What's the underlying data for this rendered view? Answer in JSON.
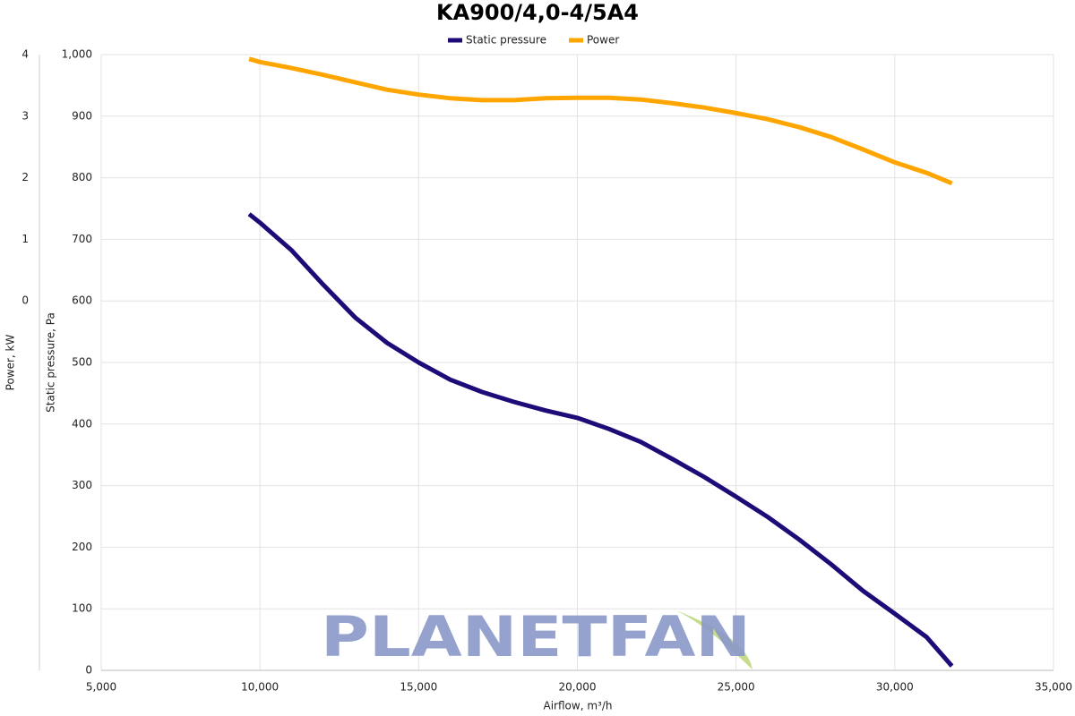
{
  "chart_data": {
    "type": "line",
    "title": "KA900/4,0-4/5A4",
    "x_label": "Airflow, m³/h",
    "y_label": "Static pressure, Pa",
    "y2_label": "Power, kW",
    "watermark": "PLANETFAN",
    "x": [
      9660,
      10000,
      11000,
      12000,
      13000,
      14000,
      15000,
      16000,
      17000,
      18000,
      19000,
      20000,
      21000,
      22000,
      23000,
      24000,
      25000,
      26000,
      27000,
      28000,
      29000,
      30000,
      31000,
      31800
    ],
    "series": [
      {
        "name": "Static pressure",
        "color": "#1f0b78",
        "values": [
          741,
          727,
          682,
          626,
          573,
          532,
          500,
          472,
          452,
          436,
          422,
          410,
          392,
          371,
          343,
          314,
          282,
          249,
          212,
          172,
          129,
          92,
          54,
          7
        ]
      },
      {
        "name": "Power",
        "color": "#ffa500",
        "axis": "y2",
        "values": [
          3.93,
          3.88,
          3.78,
          3.67,
          3.55,
          3.43,
          3.35,
          3.29,
          3.26,
          3.26,
          3.29,
          3.3,
          3.3,
          3.27,
          3.21,
          3.14,
          3.05,
          2.95,
          2.82,
          2.66,
          2.46,
          2.25,
          2.08,
          1.91
        ]
      }
    ],
    "xlim": [
      5000,
      35000
    ],
    "xticks": [
      {
        "value": 5000,
        "label": "5,000"
      },
      {
        "value": 10000,
        "label": "10,000"
      },
      {
        "value": 15000,
        "label": "15,000"
      },
      {
        "value": 20000,
        "label": "20,000"
      },
      {
        "value": 25000,
        "label": "25,000"
      },
      {
        "value": 30000,
        "label": "30,000"
      },
      {
        "value": 35000,
        "label": "35,000"
      }
    ],
    "ylim": [
      0,
      1000
    ],
    "yticks": [
      0,
      100,
      200,
      300,
      400,
      500,
      600,
      700,
      800,
      900,
      {
        "value": 1000,
        "label": "1,000"
      }
    ],
    "y2lim": [
      -6,
      4
    ],
    "y2ticks": [
      0,
      1,
      2,
      3,
      4
    ],
    "grid": true,
    "legend": "top"
  }
}
